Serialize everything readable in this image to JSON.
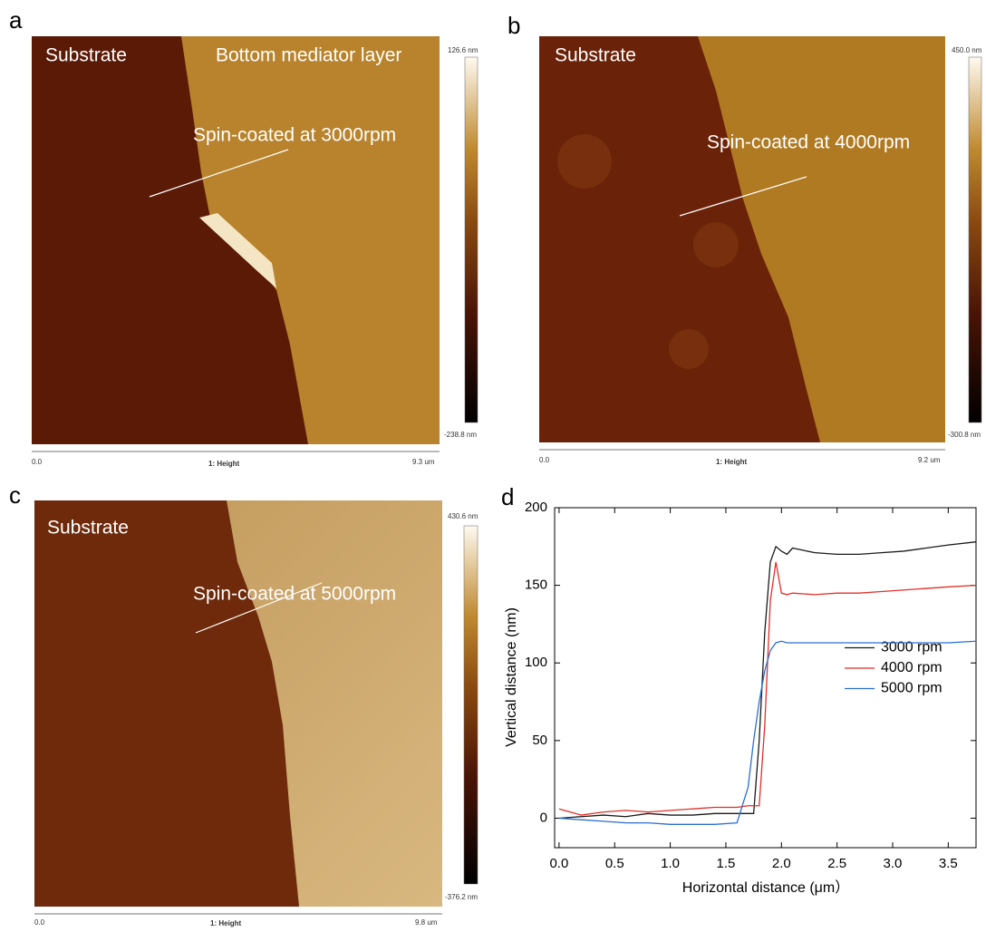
{
  "panels": [
    {
      "letter": "a",
      "texts": [
        "Substrate",
        "Bottom mediator layer",
        "Spin-coated at 3000rpm"
      ],
      "scale_max": "126.6 nm",
      "scale_min": "-238.8 nm",
      "axis": [
        "0.0",
        "1: Height",
        "9.3 um"
      ]
    },
    {
      "letter": "b",
      "texts": [
        "Substrate",
        "Spin-coated at 4000rpm"
      ],
      "scale_max": "450.0 nm",
      "scale_min": "-300.8 nm",
      "axis": [
        "0.0",
        "1: Height",
        "9.2 um"
      ]
    },
    {
      "letter": "c",
      "texts": [
        "Substrate",
        "Spin-coated at 5000rpm"
      ],
      "scale_max": "430.6 nm",
      "scale_min": "-376.2 nm",
      "axis": [
        "0.0",
        "1: Height",
        "9.8 um"
      ]
    }
  ],
  "chart_data": {
    "type": "line",
    "letter": "d",
    "x_label": "Horizontal distance (μm）",
    "y_label": "Vertical distance (nm)",
    "x": [
      0,
      0.2,
      0.4,
      0.6,
      0.8,
      1.0,
      1.2,
      1.4,
      1.6,
      1.7,
      1.75,
      1.8,
      1.85,
      1.9,
      1.95,
      2.0,
      2.05,
      2.1,
      2.3,
      2.5,
      2.7,
      2.9,
      3.1,
      3.3,
      3.5,
      3.75
    ],
    "series": [
      {
        "name": "3000 rpm",
        "color": "#1a1a1a",
        "values": [
          0,
          1,
          2,
          1,
          3,
          2,
          2,
          3,
          3,
          3,
          3,
          50,
          120,
          165,
          175,
          172,
          170,
          174,
          171,
          170,
          170,
          171,
          172,
          174,
          176,
          178
        ]
      },
      {
        "name": "4000 rpm",
        "color": "#e0302a",
        "values": [
          6,
          2,
          4,
          5,
          4,
          5,
          6,
          7,
          7,
          8,
          8,
          8,
          60,
          140,
          165,
          145,
          144,
          145,
          144,
          145,
          145,
          146,
          147,
          148,
          149,
          150
        ]
      },
      {
        "name": "5000 rpm",
        "color": "#2a6fd0",
        "values": [
          0,
          -1,
          -2,
          -3,
          -3,
          -4,
          -4,
          -4,
          -3,
          20,
          50,
          75,
          95,
          108,
          113,
          114,
          113,
          113,
          113,
          113,
          113,
          113,
          113,
          113,
          113,
          114
        ]
      }
    ],
    "xlim": [
      -0.04,
      3.75
    ],
    "xticks": [
      {
        "value": 0,
        "label": "0.0"
      },
      0.5,
      {
        "value": 1,
        "label": "1.0"
      },
      1.5,
      {
        "value": 2,
        "label": "2.0"
      },
      2.5,
      {
        "value": 3,
        "label": "3.0"
      },
      3.5
    ],
    "ylim": [
      -19,
      200
    ],
    "yticks": [
      0,
      50,
      100,
      150,
      200
    ],
    "legend": "right"
  }
}
